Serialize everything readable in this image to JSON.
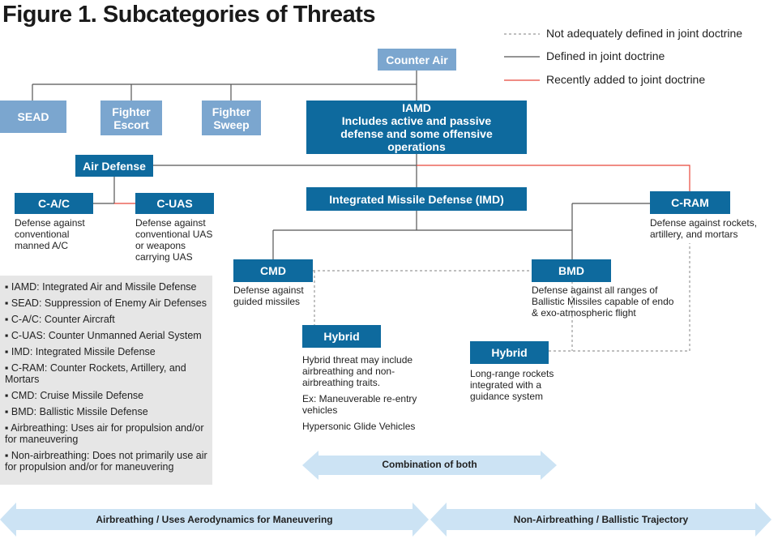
{
  "title": "Figure 1. Subcategories of Threats",
  "legend": [
    {
      "label": "Not adequately defined in joint doctrine",
      "style": "dashed",
      "color": "#999999"
    },
    {
      "label": "Defined in joint doctrine",
      "style": "solid",
      "color": "#555555"
    },
    {
      "label": "Recently added to joint doctrine",
      "style": "solid",
      "color": "#e8473b"
    }
  ],
  "colors": {
    "dark_box": "#0e6a9e",
    "light_box": "#7ba6cf",
    "arrow": "#cce3f4",
    "glossary_bg": "#e6e6e6"
  },
  "nodes": {
    "counter_air": "Counter Air",
    "sead": "SEAD",
    "fighter_escort": "Fighter Escort",
    "fighter_sweep": "Fighter Sweep",
    "iamd": {
      "title": "IAMD",
      "subtitle": "Includes active and passive defense and some offensive operations"
    },
    "air_defense": "Air Defense",
    "cac": {
      "title": "C-A/C",
      "desc": "Defense against conventional manned A/C"
    },
    "cuas": {
      "title": "C-UAS",
      "desc": "Defense against conventional UAS or weapons carrying UAS"
    },
    "imd": "Integrated Missile Defense (IMD)",
    "cram": {
      "title": "C-RAM",
      "desc": "Defense against rockets, artillery, and mortars"
    },
    "cmd": {
      "title": "CMD",
      "desc": "Defense against guided missiles"
    },
    "bmd": {
      "title": "BMD",
      "desc": "Defense against all ranges of Ballistic Missiles capable of endo & exo-atmospheric flight"
    },
    "hybrid1": {
      "title": "Hybrid",
      "desc1": "Hybrid threat may include airbreathing and non-airbreathing traits.",
      "desc2": "Ex: Maneuverable re-entry vehicles",
      "desc3": "Hypersonic Glide Vehicles"
    },
    "hybrid2": {
      "title": "Hybrid",
      "desc": "Long-range rockets integrated with a guidance system"
    }
  },
  "glossary": [
    "▪ IAMD: Integrated Air and Missile Defense",
    "▪ SEAD: Suppression of Enemy Air Defenses",
    "▪ C-A/C: Counter Aircraft",
    "▪ C-UAS: Counter Unmanned Aerial System",
    "▪ IMD: Integrated Missile Defense",
    "▪ C-RAM: Counter Rockets, Artillery, and Mortars",
    "▪ CMD: Cruise Missile Defense",
    "▪ BMD: Ballistic Missile Defense",
    "▪ Airbreathing: Uses air for propulsion and/or for maneuvering",
    "▪ Non-airbreathing: Does not primarily use air for propulsion and/or for maneuvering"
  ],
  "arrows": {
    "combination": "Combination of both",
    "airbreathing": "Airbreathing / Uses Aerodynamics for Maneuvering",
    "non_airbreathing": "Non-Airbreathing / Ballistic Trajectory"
  }
}
